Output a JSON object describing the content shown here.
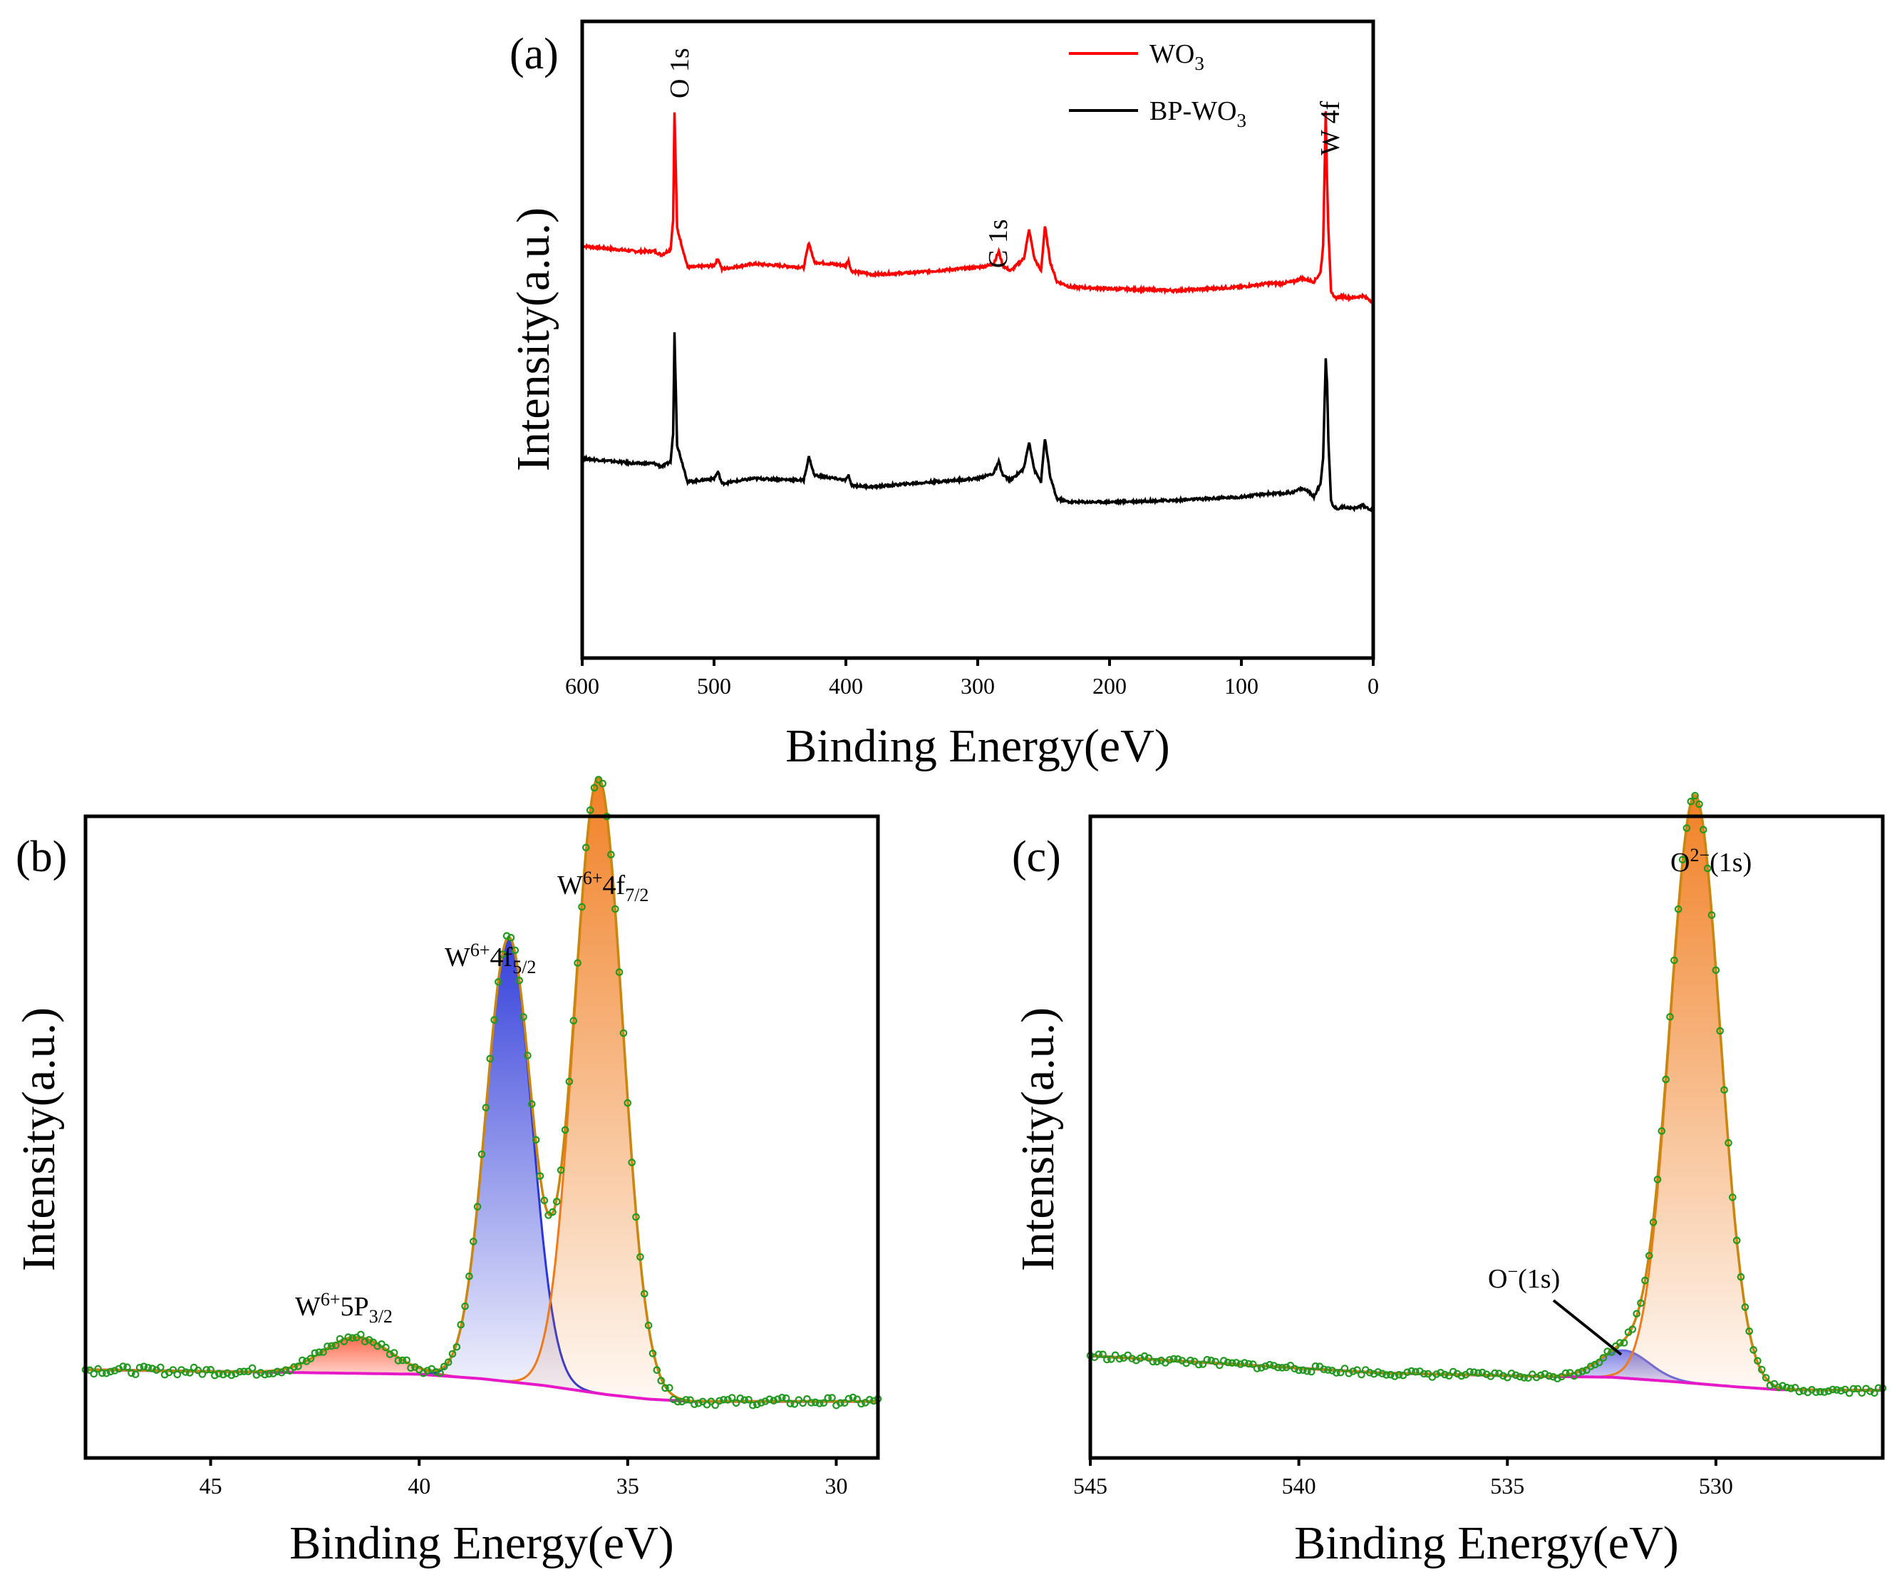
{
  "figure": "XPS spectra",
  "chart_data": [
    {
      "id": "a",
      "panel_label": "(a)",
      "type": "line",
      "xlabel": "Binding Energy(eV)",
      "ylabel": "Intensity(a.u.)",
      "xlim": [
        600,
        0
      ],
      "xticks": [
        600,
        500,
        400,
        300,
        200,
        100,
        0
      ],
      "yticks": [],
      "legend": {
        "position": "top-right",
        "entries": [
          "WO3",
          "BP-WO3"
        ]
      },
      "series": [
        {
          "name": "WO3",
          "color": "#ff0000",
          "x": [
            600,
            560,
            545,
            540,
            533,
            531,
            530,
            528,
            520,
            500,
            497,
            494,
            470,
            432,
            428,
            424,
            400,
            398,
            396,
            380,
            350,
            300,
            292,
            288,
            284,
            281,
            275,
            265,
            261,
            257,
            252,
            249,
            245,
            240,
            236,
            230,
            200,
            150,
            100,
            80,
            70,
            60,
            55,
            50,
            45,
            40,
            38,
            36,
            35,
            34,
            32,
            30,
            27,
            24,
            20,
            15,
            8,
            3,
            0
          ],
          "y": [
            20,
            17,
            17,
            15,
            18,
            35,
            95,
            30,
            8,
            9,
            13,
            7,
            10,
            8,
            22,
            11,
            9,
            12,
            6,
            4,
            5,
            8,
            9,
            10,
            17,
            9,
            6,
            13,
            29,
            13,
            6,
            31,
            11,
            0,
            -1,
            -3,
            -4,
            -5,
            -3,
            -1,
            -1,
            0,
            2,
            1,
            0,
            5,
            20,
            95,
            55,
            30,
            -5,
            -9,
            -9,
            -8,
            -9,
            -9,
            -8,
            -10,
            -12
          ]
        },
        {
          "name": "BP-WO3",
          "color": "#000000",
          "x": [
            600,
            560,
            545,
            540,
            533,
            531,
            530,
            528,
            520,
            500,
            497,
            494,
            470,
            432,
            428,
            424,
            400,
            398,
            396,
            380,
            350,
            300,
            292,
            288,
            284,
            281,
            275,
            265,
            261,
            257,
            252,
            249,
            245,
            240,
            236,
            230,
            200,
            150,
            100,
            80,
            70,
            60,
            55,
            50,
            45,
            40,
            38,
            36,
            35,
            34,
            32,
            30,
            27,
            24,
            20,
            15,
            8,
            3,
            0
          ],
          "y": [
            20,
            17,
            17,
            15,
            18,
            35,
            95,
            28,
            6,
            8,
            12,
            5,
            8,
            7,
            21,
            10,
            7,
            10,
            4,
            3,
            5,
            8,
            10,
            11,
            18,
            10,
            7,
            14,
            30,
            13,
            6,
            32,
            9,
            -4,
            -5,
            -6,
            -6,
            -5,
            -3,
            -1,
            -1,
            0,
            2,
            1,
            -3,
            5,
            20,
            80,
            65,
            30,
            -5,
            -9,
            -10,
            -9,
            -9,
            -10,
            -8,
            -10,
            -12
          ]
        }
      ],
      "annotations": [
        {
          "text": "O 1s",
          "x": 530
        },
        {
          "text": "C 1s",
          "x": 284
        },
        {
          "text": "W 4f",
          "x": 35
        }
      ]
    },
    {
      "id": "b",
      "panel_label": "(b)",
      "type": "line",
      "xlabel": "Binding Energy(eV)",
      "ylabel": "Intensity(a.u.)",
      "xlim": [
        48,
        29
      ],
      "xticks": [
        45,
        40,
        35,
        30
      ],
      "yticks": [],
      "baseline_points": {
        "x": [
          48,
          40,
          38.5,
          37,
          35.5,
          34.5,
          33.5,
          29
        ],
        "y": [
          8,
          7,
          6,
          4.5,
          2.5,
          1.5,
          1,
          1
        ]
      },
      "components": [
        {
          "name": "W6+5P3/2",
          "center": 41.5,
          "height": 8,
          "width": 0.8,
          "color": "#ff5a3a"
        },
        {
          "name": "W6+4f5/2",
          "center": 37.85,
          "height": 98,
          "width": 0.55,
          "color": "#2a36d8"
        },
        {
          "name": "W6+4f7/2",
          "center": 35.7,
          "height": 136,
          "width": 0.58,
          "color": "#f07a1a"
        }
      ],
      "data_markers": {
        "color": "#1f9a1f",
        "x_start": 48,
        "x_end": 29,
        "step": 0.1
      },
      "annotations": [
        {
          "text": "W6+4f7/2",
          "x": 35.7
        },
        {
          "text": "W6+4f5/2",
          "x": 37.85
        },
        {
          "text": "W6+5P3/2",
          "x": 41.5
        }
      ]
    },
    {
      "id": "c",
      "panel_label": "(c)",
      "type": "line",
      "xlabel": "Binding Energy(eV)",
      "ylabel": "Intensity(a.u.)",
      "xlim": [
        545,
        526
      ],
      "xticks": [
        545,
        540,
        535,
        530
      ],
      "yticks": [],
      "baseline_points": {
        "x": [
          545,
          538,
          534,
          532.5,
          531,
          529.5,
          528.5,
          526
        ],
        "y": [
          11,
          6,
          5,
          4.8,
          3.5,
          2,
          1.2,
          1
        ]
      },
      "components": [
        {
          "name": "O-(1s)",
          "center": 532.2,
          "height": 8,
          "width": 0.6,
          "color": "#6a6ae0"
        },
        {
          "name": "O2-(1s)",
          "center": 530.5,
          "height": 170,
          "width": 0.6,
          "color": "#f07a1a"
        }
      ],
      "data_markers": {
        "color": "#1f9a1f",
        "x_start": 545,
        "x_end": 526,
        "step": 0.1
      },
      "annotations": [
        {
          "text": "O2−(1s)",
          "x": 530.5
        },
        {
          "text": "O−(1s)",
          "x": 532.2
        }
      ]
    }
  ],
  "labels": {
    "legend_wo3_main": "WO",
    "legend_wo3_sub": "3",
    "legend_bp_main": "BP-WO",
    "legend_bp_sub": "3",
    "w4f72_main": "W",
    "w4f72_sup": "6+",
    "w4f72_mid": "4f",
    "w4f72_sub": "7/2",
    "w4f52_main": "W",
    "w4f52_sup": "6+",
    "w4f52_mid": "4f",
    "w4f52_sub": "5/2",
    "w5p_main": "W",
    "w5p_sup": "6+",
    "w5p_mid": "5P",
    "w5p_sub": "3/2",
    "o2_main": "O",
    "o2_sup": "2−",
    "o2_rest": "(1s)",
    "o1_main": "O",
    "o1_sup": "−",
    "o1_rest": "(1s)"
  }
}
